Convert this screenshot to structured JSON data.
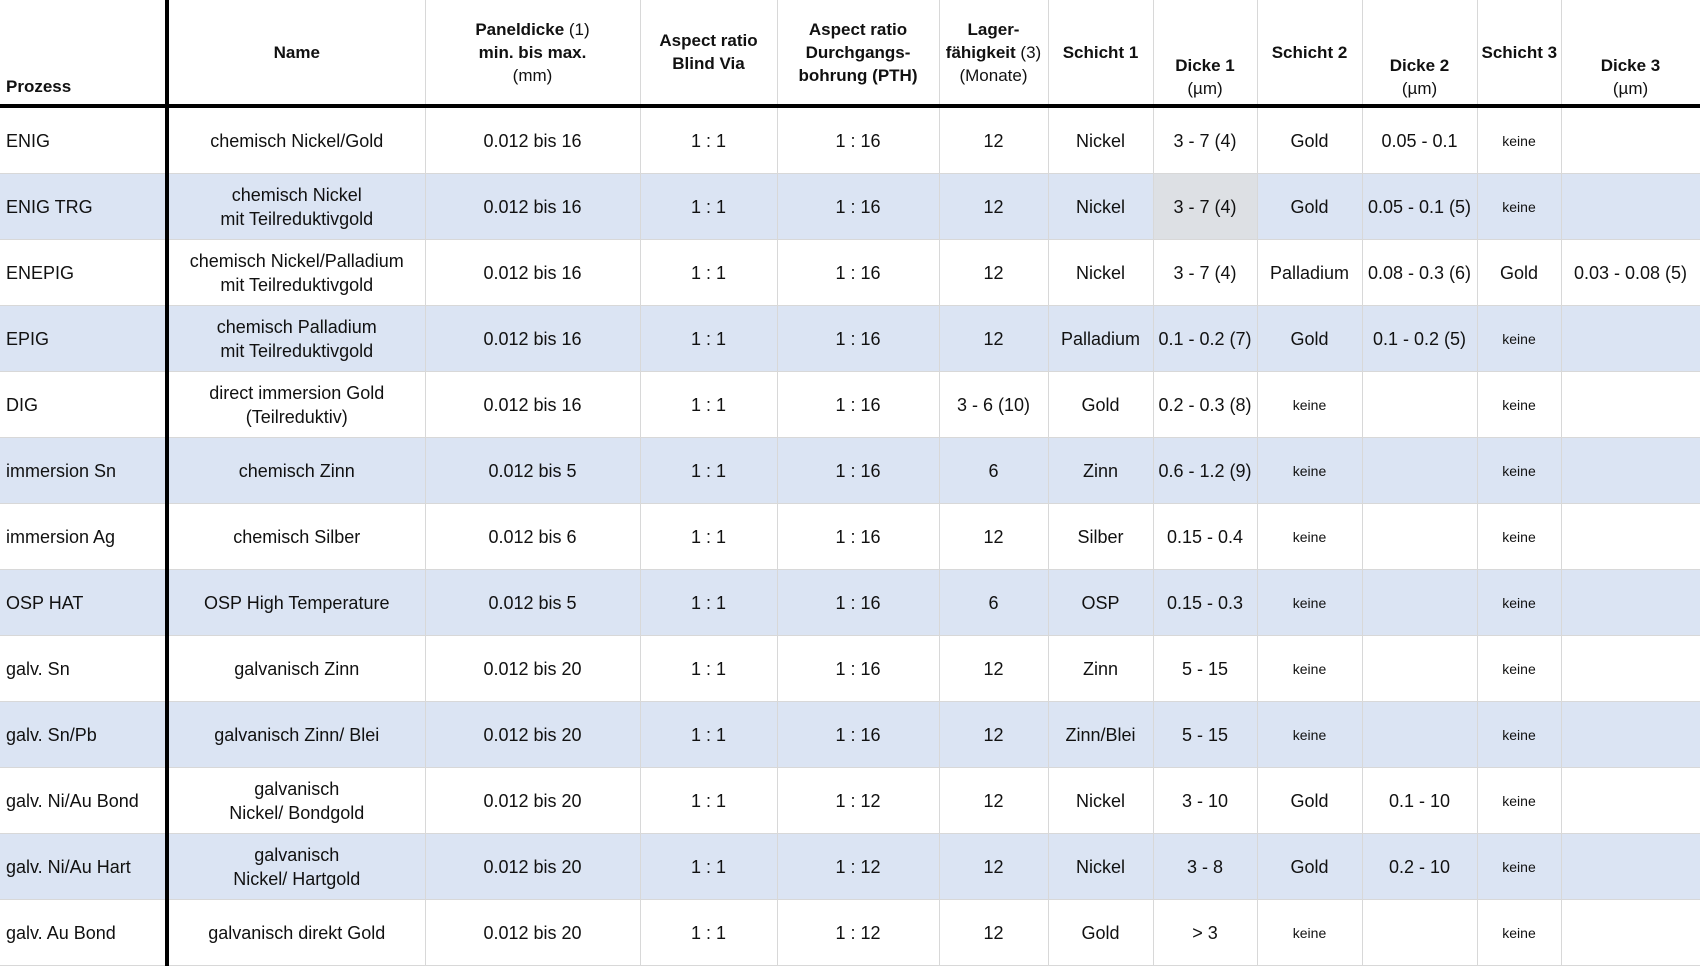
{
  "header": {
    "prozess": "Prozess",
    "name": "Name",
    "paneldicke_bold": "Paneldicke",
    "paneldicke_note": "(1)",
    "paneldicke_line2": "min. bis max.",
    "paneldicke_unit": "(mm)",
    "aspect_blind_l1": "Aspect ratio",
    "aspect_blind_l2": "Blind Via",
    "aspect_pth_l1": "Aspect ratio",
    "aspect_pth_l2": "Durchgangs-",
    "aspect_pth_l3": "bohrung (PTH)",
    "lager_l1": "Lager-",
    "lager_l2": "fähigkeit",
    "lager_note": "(3)",
    "lager_unit": "(Monate)",
    "schicht1": "Schicht 1",
    "dicke1": "Dicke 1",
    "dicke1_unit": "(µm)",
    "schicht2": "Schicht 2",
    "dicke2": "Dicke 2",
    "dicke2_unit": "(µm)",
    "schicht3": "Schicht 3",
    "dicke3": "Dicke 3",
    "dicke3_unit": "(µm)"
  },
  "rows": [
    {
      "prozess": "ENIG",
      "name1": "chemisch Nickel/Gold",
      "name2": "",
      "panel": "0.012  bis 16",
      "blind": "1 : 1",
      "pth": "1 : 16",
      "lager": "12",
      "s1": "Nickel",
      "d1": "3 - 7 (4)",
      "s2": "Gold",
      "d2": "0.05 - 0.1",
      "s3": "keine",
      "d3": ""
    },
    {
      "prozess": "ENIG TRG",
      "name1": "chemisch Nickel",
      "name2": "mit Teilreduktivgold",
      "panel": "0.012 bis 16",
      "blind": "1 : 1",
      "pth": "1 : 16",
      "lager": "12",
      "s1": "Nickel",
      "d1": "3 - 7 (4)",
      "s2": "Gold",
      "d2": "0.05 - 0.1 (5)",
      "s3": "keine",
      "d3": ""
    },
    {
      "prozess": "ENEPIG",
      "name1": "chemisch Nickel/Palladium",
      "name2": "mit Teilreduktivgold",
      "panel": "0.012 bis 16",
      "blind": "1 : 1",
      "pth": "1 : 16",
      "lager": "12",
      "s1": "Nickel",
      "d1": "3 - 7 (4)",
      "s2": "Palladium",
      "d2": "0.08 - 0.3 (6)",
      "s3": "Gold",
      "d3": "0.03 - 0.08 (5)"
    },
    {
      "prozess": "EPIG",
      "name1": "chemisch Palladium",
      "name2": "mit Teilreduktivgold",
      "panel": "0.012 bis 16",
      "blind": "1 : 1",
      "pth": "1 : 16",
      "lager": "12",
      "s1": "Palladium",
      "d1": "0.1 - 0.2 (7)",
      "s2": "Gold",
      "d2": "0.1 - 0.2 (5)",
      "s3": "keine",
      "d3": ""
    },
    {
      "prozess": "DIG",
      "name1": "direct immersion Gold",
      "name2": "(Teilreduktiv)",
      "panel": "0.012 bis 16",
      "blind": "1 : 1",
      "pth": "1 : 16",
      "lager": "3 - 6 (10)",
      "s1": "Gold",
      "d1": "0.2 - 0.3 (8)",
      "s2": "keine",
      "d2": "",
      "s3": "keine",
      "d3": ""
    },
    {
      "prozess": "immersion Sn",
      "name1": "chemisch Zinn",
      "name2": "",
      "panel": "0.012 bis 5",
      "blind": "1 : 1",
      "pth": "1 : 16",
      "lager": "6",
      "s1": "Zinn",
      "d1": "0.6 - 1.2 (9)",
      "s2": "keine",
      "d2": "",
      "s3": "keine",
      "d3": ""
    },
    {
      "prozess": "immersion Ag",
      "name1": "chemisch Silber",
      "name2": "",
      "panel": "0.012 bis 6",
      "blind": "1 : 1",
      "pth": "1 : 16",
      "lager": "12",
      "s1": "Silber",
      "d1": "0.15 - 0.4",
      "s2": "keine",
      "d2": "",
      "s3": "keine",
      "d3": ""
    },
    {
      "prozess": "OSP HAT",
      "name1": "OSP High Temperature",
      "name2": "",
      "panel": "0.012 bis 5",
      "blind": "1 : 1",
      "pth": "1 : 16",
      "lager": "6",
      "s1": "OSP",
      "d1": "0.15 - 0.3",
      "s2": "keine",
      "d2": "",
      "s3": "keine",
      "d3": ""
    },
    {
      "prozess": "galv. Sn",
      "name1": "galvanisch Zinn",
      "name2": "",
      "panel": "0.012 bis 20",
      "blind": "1 : 1",
      "pth": "1 : 16",
      "lager": "12",
      "s1": "Zinn",
      "d1": "5 - 15",
      "s2": "keine",
      "d2": "",
      "s3": "keine",
      "d3": ""
    },
    {
      "prozess": "galv. Sn/Pb",
      "name1": "galvanisch Zinn/ Blei",
      "name2": "",
      "panel": "0.012 bis 20",
      "blind": "1 : 1",
      "pth": "1 : 16",
      "lager": "12",
      "s1": "Zinn/Blei",
      "d1": "5 - 15",
      "s2": "keine",
      "d2": "",
      "s3": "keine",
      "d3": ""
    },
    {
      "prozess": "galv. Ni/Au Bond",
      "name1": "galvanisch",
      "name2": "Nickel/ Bondgold",
      "panel": "0.012 bis 20",
      "blind": "1 : 1",
      "pth": "1 : 12",
      "lager": "12",
      "s1": "Nickel",
      "d1": "3 - 10",
      "s2": "Gold",
      "d2": "0.1 - 10",
      "s3": "keine",
      "d3": ""
    },
    {
      "prozess": "galv. Ni/Au Hart",
      "name1": "galvanisch",
      "name2": "Nickel/ Hartgold",
      "panel": "0.012 bis 20",
      "blind": "1 : 1",
      "pth": "1 : 12",
      "lager": "12",
      "s1": "Nickel",
      "d1": "3 - 8",
      "s2": "Gold",
      "d2": "0.2 - 10",
      "s3": "keine",
      "d3": ""
    },
    {
      "prozess": "galv. Au Bond",
      "name1": "galvanisch direkt Gold",
      "name2": "",
      "panel": "0.012 bis 20",
      "blind": "1 : 1",
      "pth": "1 : 12",
      "lager": "12",
      "s1": "Gold",
      "d1": "> 3",
      "s2": "keine",
      "d2": "",
      "s3": "keine",
      "d3": ""
    }
  ]
}
